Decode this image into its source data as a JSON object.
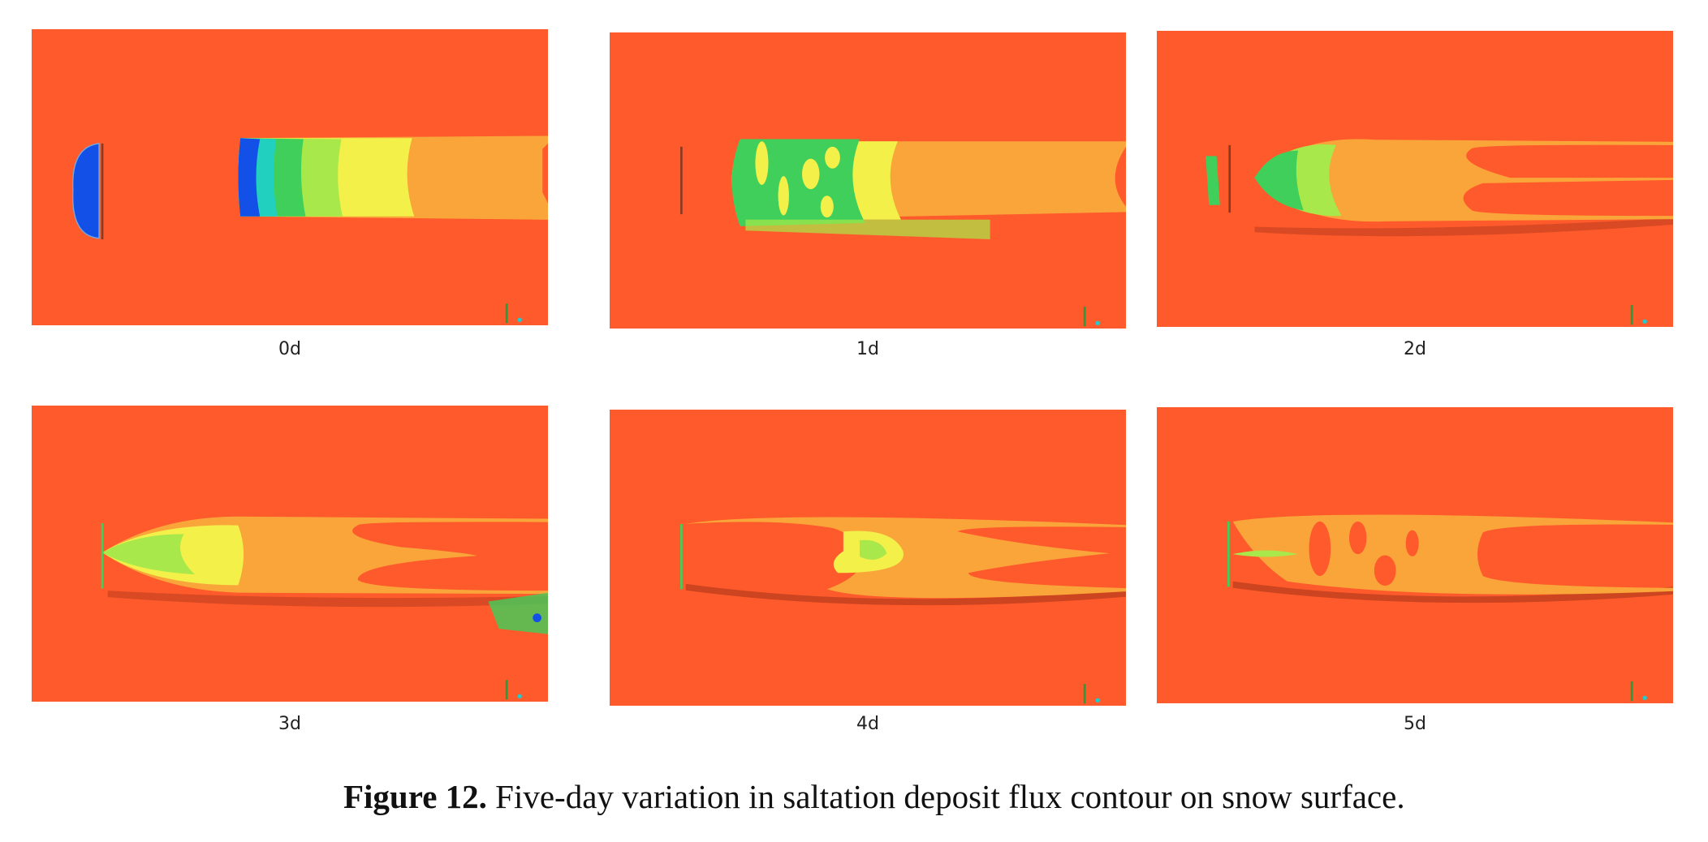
{
  "panels": [
    {
      "label": "0d"
    },
    {
      "label": "1d"
    },
    {
      "label": "2d"
    },
    {
      "label": "3d"
    },
    {
      "label": "4d"
    },
    {
      "label": "5d"
    }
  ],
  "caption": {
    "label": "Figure 12.",
    "text": "Five-day variation in saltation deposit flux contour on snow surface."
  }
}
